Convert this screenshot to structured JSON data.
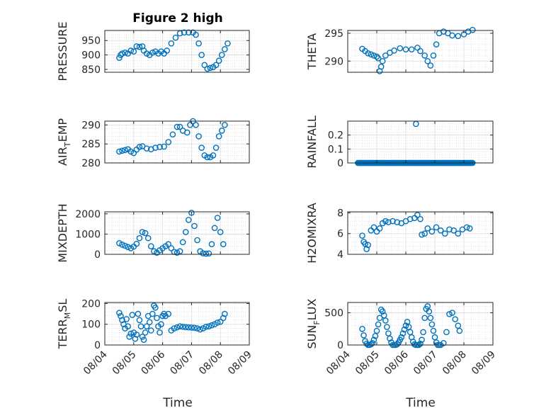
{
  "chart_data": [
    {
      "type": "scatter",
      "title": "Figure 2 high",
      "ylabel": "PRESSURE",
      "ylim": [
        840,
        985
      ],
      "yticks": [
        850,
        900,
        950
      ],
      "x_range": [
        "08/04",
        "08/09"
      ],
      "points": [
        [
          0.5,
          890
        ],
        [
          0.55,
          900
        ],
        [
          0.6,
          905
        ],
        [
          0.7,
          908
        ],
        [
          0.8,
          905
        ],
        [
          0.9,
          915
        ],
        [
          1.0,
          912
        ],
        [
          1.1,
          930
        ],
        [
          1.2,
          928
        ],
        [
          1.3,
          930
        ],
        [
          1.35,
          915
        ],
        [
          1.45,
          905
        ],
        [
          1.55,
          900
        ],
        [
          1.65,
          908
        ],
        [
          1.75,
          912
        ],
        [
          1.85,
          905
        ],
        [
          1.95,
          912
        ],
        [
          2.05,
          905
        ],
        [
          2.15,
          915
        ],
        [
          2.3,
          940
        ],
        [
          2.45,
          960
        ],
        [
          2.6,
          975
        ],
        [
          2.75,
          978
        ],
        [
          2.9,
          978
        ],
        [
          3.05,
          978
        ],
        [
          3.15,
          970
        ],
        [
          3.25,
          940
        ],
        [
          3.35,
          900
        ],
        [
          3.45,
          865
        ],
        [
          3.55,
          852
        ],
        [
          3.65,
          855
        ],
        [
          3.75,
          858
        ],
        [
          3.85,
          865
        ],
        [
          3.95,
          880
        ],
        [
          4.05,
          900
        ],
        [
          4.15,
          920
        ],
        [
          4.25,
          940
        ]
      ]
    },
    {
      "type": "scatter",
      "ylabel": "THETA",
      "ylim": [
        288,
        295.5
      ],
      "yticks": [
        290,
        295
      ],
      "x_range": [
        "08/04",
        "08/09"
      ],
      "points": [
        [
          0.5,
          292.2
        ],
        [
          0.6,
          291.8
        ],
        [
          0.7,
          291.4
        ],
        [
          0.8,
          291.2
        ],
        [
          0.9,
          291
        ],
        [
          1.0,
          290.8
        ],
        [
          1.05,
          290.5
        ],
        [
          1.1,
          288.2
        ],
        [
          1.15,
          289
        ],
        [
          1.2,
          290
        ],
        [
          1.3,
          291
        ],
        [
          1.45,
          291.5
        ],
        [
          1.6,
          291.9
        ],
        [
          1.8,
          292.3
        ],
        [
          2.0,
          292.1
        ],
        [
          2.2,
          292.1
        ],
        [
          2.4,
          292.4
        ],
        [
          2.5,
          291.8
        ],
        [
          2.65,
          291
        ],
        [
          2.75,
          290
        ],
        [
          2.85,
          289.2
        ],
        [
          2.95,
          291
        ],
        [
          3.05,
          293
        ],
        [
          3.15,
          295
        ],
        [
          3.3,
          295.3
        ],
        [
          3.45,
          295
        ],
        [
          3.6,
          294.6
        ],
        [
          3.8,
          294.5
        ],
        [
          4.0,
          294.8
        ],
        [
          4.15,
          295.3
        ],
        [
          4.3,
          295.6
        ]
      ]
    },
    {
      "type": "scatter",
      "ylabel": "AIR",
      "ylabel_sub": "T",
      "ylabel_rest": "EMP",
      "ylim": [
        280,
        291
      ],
      "yticks": [
        280,
        285,
        290
      ],
      "x_range": [
        "08/04",
        "08/09"
      ],
      "points": [
        [
          0.5,
          283
        ],
        [
          0.6,
          283.2
        ],
        [
          0.7,
          283.4
        ],
        [
          0.8,
          283.6
        ],
        [
          0.9,
          283
        ],
        [
          1.0,
          282.6
        ],
        [
          1.1,
          283.5
        ],
        [
          1.2,
          284.2
        ],
        [
          1.3,
          284.4
        ],
        [
          1.45,
          283.8
        ],
        [
          1.6,
          283.6
        ],
        [
          1.75,
          284
        ],
        [
          1.9,
          284.2
        ],
        [
          2.05,
          284.3
        ],
        [
          2.2,
          285.5
        ],
        [
          2.35,
          287.5
        ],
        [
          2.5,
          289.5
        ],
        [
          2.6,
          289.5
        ],
        [
          2.7,
          288.5
        ],
        [
          2.85,
          288
        ],
        [
          2.95,
          290
        ],
        [
          3.05,
          291
        ],
        [
          3.15,
          290
        ],
        [
          3.25,
          287
        ],
        [
          3.35,
          284
        ],
        [
          3.45,
          282
        ],
        [
          3.55,
          281.5
        ],
        [
          3.65,
          281.5
        ],
        [
          3.75,
          282
        ],
        [
          3.85,
          284
        ],
        [
          3.95,
          287
        ],
        [
          4.05,
          288.5
        ],
        [
          4.15,
          290
        ]
      ]
    },
    {
      "type": "scatter",
      "ylabel": "RAINFALL",
      "ylim": [
        0,
        0.3
      ],
      "yticks": [
        0,
        0.1,
        0.2
      ],
      "x_range": [
        "08/04",
        "08/09"
      ],
      "rain_start_day": 0.35,
      "rain_end_day": 4.3,
      "rain_step": 0.025,
      "rain_peak": [
        2.35,
        0.28
      ]
    },
    {
      "type": "scatter",
      "ylabel": "MIXDEPTH",
      "ylim": [
        0,
        2100
      ],
      "yticks": [
        0,
        1000,
        2000
      ],
      "x_range": [
        "08/04",
        "08/09"
      ],
      "points": [
        [
          0.5,
          550
        ],
        [
          0.6,
          480
        ],
        [
          0.7,
          420
        ],
        [
          0.8,
          360
        ],
        [
          0.9,
          300
        ],
        [
          1.0,
          380
        ],
        [
          1.1,
          520
        ],
        [
          1.2,
          800
        ],
        [
          1.3,
          1100
        ],
        [
          1.4,
          1050
        ],
        [
          1.5,
          800
        ],
        [
          1.6,
          400
        ],
        [
          1.7,
          150
        ],
        [
          1.8,
          80
        ],
        [
          1.9,
          200
        ],
        [
          2.0,
          300
        ],
        [
          2.1,
          400
        ],
        [
          2.2,
          500
        ],
        [
          2.3,
          300
        ],
        [
          2.4,
          120
        ],
        [
          2.5,
          80
        ],
        [
          2.6,
          150
        ],
        [
          2.7,
          600
        ],
        [
          2.8,
          1100
        ],
        [
          2.9,
          1700
        ],
        [
          3.0,
          2050
        ],
        [
          3.1,
          1400
        ],
        [
          3.2,
          700
        ],
        [
          3.3,
          150
        ],
        [
          3.4,
          50
        ],
        [
          3.5,
          30
        ],
        [
          3.6,
          40
        ],
        [
          3.7,
          500
        ],
        [
          3.8,
          1300
        ],
        [
          3.9,
          1800
        ],
        [
          4.0,
          1100
        ],
        [
          4.1,
          500
        ]
      ]
    },
    {
      "type": "scatter",
      "ylabel": "H2OMIXRA",
      "ylim": [
        4,
        8.1
      ],
      "yticks": [
        4,
        6,
        8
      ],
      "x_range": [
        "08/04",
        "08/09"
      ],
      "points": [
        [
          0.5,
          5.8
        ],
        [
          0.55,
          5.2
        ],
        [
          0.6,
          5.0
        ],
        [
          0.65,
          4.5
        ],
        [
          0.7,
          4.9
        ],
        [
          0.8,
          6.3
        ],
        [
          0.9,
          6.6
        ],
        [
          1.0,
          6.2
        ],
        [
          1.1,
          6.5
        ],
        [
          1.2,
          7.0
        ],
        [
          1.3,
          7.2
        ],
        [
          1.4,
          7.1
        ],
        [
          1.55,
          7.2
        ],
        [
          1.7,
          7.1
        ],
        [
          1.85,
          7.0
        ],
        [
          2.0,
          7.2
        ],
        [
          2.15,
          7.4
        ],
        [
          2.3,
          7.5
        ],
        [
          2.4,
          7.8
        ],
        [
          2.5,
          7.4
        ],
        [
          2.55,
          5.9
        ],
        [
          2.65,
          6.0
        ],
        [
          2.75,
          6.5
        ],
        [
          2.9,
          6.2
        ],
        [
          3.05,
          6.6
        ],
        [
          3.2,
          6.3
        ],
        [
          3.35,
          6.0
        ],
        [
          3.5,
          6.4
        ],
        [
          3.65,
          6.3
        ],
        [
          3.8,
          6.0
        ],
        [
          3.95,
          6.4
        ],
        [
          4.1,
          6.6
        ],
        [
          4.2,
          6.5
        ]
      ]
    },
    {
      "type": "scatter",
      "ylabel": "TERR",
      "ylabel_sub": "M",
      "ylabel_rest": "SL",
      "ylim": [
        0,
        205
      ],
      "yticks": [
        0,
        100,
        200
      ],
      "x_range": [
        "08/04",
        "08/09"
      ],
      "points": [
        [
          0.5,
          155
        ],
        [
          0.55,
          140
        ],
        [
          0.6,
          120
        ],
        [
          0.65,
          100
        ],
        [
          0.7,
          80
        ],
        [
          0.75,
          125
        ],
        [
          0.8,
          90
        ],
        [
          0.85,
          40
        ],
        [
          0.9,
          55
        ],
        [
          0.95,
          145
        ],
        [
          1.0,
          60
        ],
        [
          1.05,
          30
        ],
        [
          1.1,
          50
        ],
        [
          1.15,
          150
        ],
        [
          1.2,
          120
        ],
        [
          1.25,
          90
        ],
        [
          1.3,
          40
        ],
        [
          1.35,
          25
        ],
        [
          1.4,
          60
        ],
        [
          1.45,
          90
        ],
        [
          1.5,
          140
        ],
        [
          1.55,
          110
        ],
        [
          1.6,
          70
        ],
        [
          1.65,
          150
        ],
        [
          1.7,
          190
        ],
        [
          1.75,
          180
        ],
        [
          1.8,
          130
        ],
        [
          1.85,
          90
        ],
        [
          1.9,
          60
        ],
        [
          1.95,
          100
        ],
        [
          2.0,
          140
        ],
        [
          2.05,
          150
        ],
        [
          2.1,
          140
        ],
        [
          2.2,
          150
        ],
        [
          2.3,
          70
        ],
        [
          2.4,
          80
        ],
        [
          2.5,
          85
        ],
        [
          2.6,
          90
        ],
        [
          2.7,
          88
        ],
        [
          2.8,
          86
        ],
        [
          2.9,
          85
        ],
        [
          3.0,
          84
        ],
        [
          3.1,
          83
        ],
        [
          3.2,
          80
        ],
        [
          3.3,
          75
        ],
        [
          3.4,
          80
        ],
        [
          3.5,
          88
        ],
        [
          3.6,
          90
        ],
        [
          3.7,
          95
        ],
        [
          3.8,
          100
        ],
        [
          3.9,
          108
        ],
        [
          4.0,
          112
        ],
        [
          4.1,
          130
        ],
        [
          4.15,
          150
        ]
      ]
    },
    {
      "type": "scatter",
      "ylabel": "SUN",
      "ylabel_sub": "F",
      "ylabel_rest": "LUX",
      "ylim": [
        0,
        660
      ],
      "yticks": [
        0,
        500
      ],
      "x_range": [
        "08/04",
        "08/09"
      ],
      "xticks": [
        "08/04",
        "08/05",
        "08/06",
        "08/07",
        "08/08",
        "08/09"
      ],
      "xlabel": "Time",
      "points": [
        [
          0.5,
          250
        ],
        [
          0.55,
          150
        ],
        [
          0.6,
          60
        ],
        [
          0.65,
          20
        ],
        [
          0.7,
          0
        ],
        [
          0.75,
          0
        ],
        [
          0.8,
          10
        ],
        [
          0.85,
          30
        ],
        [
          0.9,
          80
        ],
        [
          0.95,
          140
        ],
        [
          1.0,
          220
        ],
        [
          1.05,
          320
        ],
        [
          1.1,
          420
        ],
        [
          1.15,
          550
        ],
        [
          1.2,
          520
        ],
        [
          1.25,
          460
        ],
        [
          1.3,
          380
        ],
        [
          1.35,
          280
        ],
        [
          1.4,
          180
        ],
        [
          1.45,
          100
        ],
        [
          1.5,
          40
        ],
        [
          1.55,
          0
        ],
        [
          1.6,
          0
        ],
        [
          1.65,
          0
        ],
        [
          1.7,
          10
        ],
        [
          1.75,
          40
        ],
        [
          1.8,
          80
        ],
        [
          1.85,
          120
        ],
        [
          1.9,
          180
        ],
        [
          1.95,
          240
        ],
        [
          2.0,
          300
        ],
        [
          2.05,
          360
        ],
        [
          2.1,
          280
        ],
        [
          2.15,
          200
        ],
        [
          2.2,
          120
        ],
        [
          2.25,
          50
        ],
        [
          2.3,
          10
        ],
        [
          2.35,
          0
        ],
        [
          2.4,
          0
        ],
        [
          2.45,
          0
        ],
        [
          2.5,
          20
        ],
        [
          2.55,
          80
        ],
        [
          2.6,
          200
        ],
        [
          2.65,
          420
        ],
        [
          2.7,
          560
        ],
        [
          2.75,
          600
        ],
        [
          2.8,
          520
        ],
        [
          2.85,
          420
        ],
        [
          2.9,
          320
        ],
        [
          2.95,
          220
        ],
        [
          3.0,
          120
        ],
        [
          3.05,
          40
        ],
        [
          3.1,
          0
        ],
        [
          3.15,
          0
        ],
        [
          3.2,
          0
        ],
        [
          3.3,
          30
        ],
        [
          3.4,
          200
        ],
        [
          3.5,
          480
        ],
        [
          3.6,
          500
        ],
        [
          3.7,
          400
        ],
        [
          3.8,
          300
        ],
        [
          3.85,
          220
        ]
      ]
    }
  ]
}
